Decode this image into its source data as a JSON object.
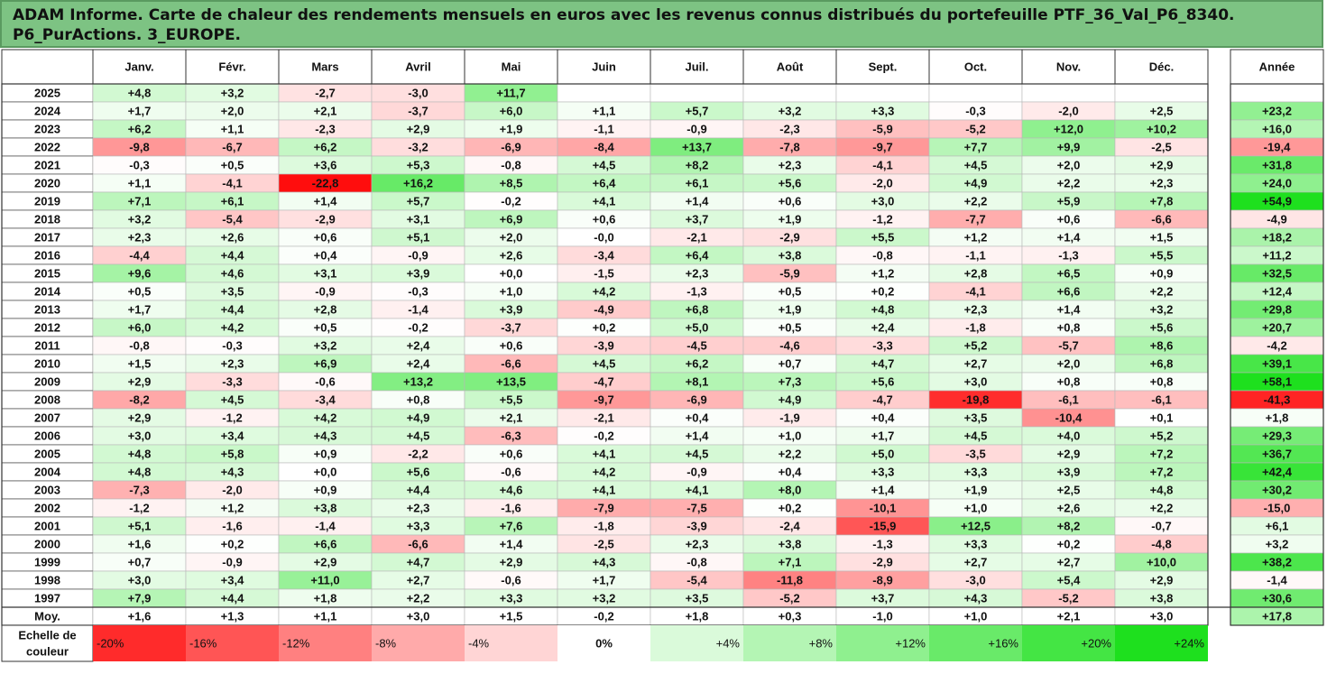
{
  "report": {
    "title_line1": "ADAM Informe. Carte de chaleur des rendements mensuels en euros avec les revenus connus distribués du portefeuille PTF_36_Val_P6_8340.",
    "title_line2": "P6_PurActions. 3_EUROPE."
  },
  "colors": {
    "title_bg": "#7dc383",
    "neg_max": "#ff0000",
    "pos_max": "#1ee01e",
    "neutral": "#ffffff",
    "grid": "#333333"
  },
  "chart_data": {
    "type": "heatmap",
    "columns": [
      "Janv.",
      "Févr.",
      "Mars",
      "Avril",
      "Mai",
      "Juin",
      "Juil.",
      "Août",
      "Sept.",
      "Oct.",
      "Nov.",
      "Déc."
    ],
    "year_column_label": "Année",
    "color_min": -24,
    "color_max": 24,
    "rows": [
      {
        "label": "2025",
        "values": [
          "+4,8",
          "+3,2",
          "-2,7",
          "-3,0",
          "+11,7",
          null,
          null,
          null,
          null,
          null,
          null,
          null
        ],
        "year": null
      },
      {
        "label": "2024",
        "values": [
          "+1,7",
          "+2,0",
          "+2,1",
          "-3,7",
          "+6,0",
          "+1,1",
          "+5,7",
          "+3,2",
          "+3,3",
          "-0,3",
          "-2,0",
          "+2,5"
        ],
        "year": "+23,2"
      },
      {
        "label": "2023",
        "values": [
          "+6,2",
          "+1,1",
          "-2,3",
          "+2,9",
          "+1,9",
          "-1,1",
          "-0,9",
          "-2,3",
          "-5,9",
          "-5,2",
          "+12,0",
          "+10,2"
        ],
        "year": "+16,0"
      },
      {
        "label": "2022",
        "values": [
          "-9,8",
          "-6,7",
          "+6,2",
          "-3,2",
          "-6,9",
          "-8,4",
          "+13,7",
          "-7,8",
          "-9,7",
          "+7,7",
          "+9,9",
          "-2,5"
        ],
        "year": "-19,4"
      },
      {
        "label": "2021",
        "values": [
          "-0,3",
          "+0,5",
          "+3,6",
          "+5,3",
          "-0,8",
          "+4,5",
          "+8,2",
          "+2,3",
          "-4,1",
          "+4,5",
          "+2,0",
          "+2,9"
        ],
        "year": "+31,8"
      },
      {
        "label": "2020",
        "values": [
          "+1,1",
          "-4,1",
          "-22,8",
          "+16,2",
          "+8,5",
          "+6,4",
          "+6,1",
          "+5,6",
          "-2,0",
          "+4,9",
          "+2,2",
          "+2,3"
        ],
        "year": "+24,0"
      },
      {
        "label": "2019",
        "values": [
          "+7,1",
          "+6,1",
          "+1,4",
          "+5,7",
          "-0,2",
          "+4,1",
          "+1,4",
          "+0,6",
          "+3,0",
          "+2,2",
          "+5,9",
          "+7,8"
        ],
        "year": "+54,9"
      },
      {
        "label": "2018",
        "values": [
          "+3,2",
          "-5,4",
          "-2,9",
          "+3,1",
          "+6,9",
          "+0,6",
          "+3,7",
          "+1,9",
          "-1,2",
          "-7,7",
          "+0,6",
          "-6,6"
        ],
        "year": "-4,9"
      },
      {
        "label": "2017",
        "values": [
          "+2,3",
          "+2,6",
          "+0,6",
          "+5,1",
          "+2,0",
          "-0,0",
          "-2,1",
          "-2,9",
          "+5,5",
          "+1,2",
          "+1,4",
          "+1,5"
        ],
        "year": "+18,2"
      },
      {
        "label": "2016",
        "values": [
          "-4,4",
          "+4,4",
          "+0,4",
          "-0,9",
          "+2,6",
          "-3,4",
          "+6,4",
          "+3,8",
          "-0,8",
          "-1,1",
          "-1,3",
          "+5,5"
        ],
        "year": "+11,2"
      },
      {
        "label": "2015",
        "values": [
          "+9,6",
          "+4,6",
          "+3,1",
          "+3,9",
          "+0,0",
          "-1,5",
          "+2,3",
          "-5,9",
          "+1,2",
          "+2,8",
          "+6,5",
          "+0,9"
        ],
        "year": "+32,5"
      },
      {
        "label": "2014",
        "values": [
          "+0,5",
          "+3,5",
          "-0,9",
          "-0,3",
          "+1,0",
          "+4,2",
          "-1,3",
          "+0,5",
          "+0,2",
          "-4,1",
          "+6,6",
          "+2,2"
        ],
        "year": "+12,4"
      },
      {
        "label": "2013",
        "values": [
          "+1,7",
          "+4,4",
          "+2,8",
          "-1,4",
          "+3,9",
          "-4,9",
          "+6,8",
          "+1,9",
          "+4,8",
          "+2,3",
          "+1,4",
          "+3,2"
        ],
        "year": "+29,8"
      },
      {
        "label": "2012",
        "values": [
          "+6,0",
          "+4,2",
          "+0,5",
          "-0,2",
          "-3,7",
          "+0,2",
          "+5,0",
          "+0,5",
          "+2,4",
          "-1,8",
          "+0,8",
          "+5,6"
        ],
        "year": "+20,7"
      },
      {
        "label": "2011",
        "values": [
          "-0,8",
          "-0,3",
          "+3,2",
          "+2,4",
          "+0,6",
          "-3,9",
          "-4,5",
          "-4,6",
          "-3,3",
          "+5,2",
          "-5,7",
          "+8,6"
        ],
        "year": "-4,2"
      },
      {
        "label": "2010",
        "values": [
          "+1,5",
          "+2,3",
          "+6,9",
          "+2,4",
          "-6,6",
          "+4,5",
          "+6,2",
          "+0,7",
          "+4,7",
          "+2,7",
          "+2,0",
          "+6,8"
        ],
        "year": "+39,1"
      },
      {
        "label": "2009",
        "values": [
          "+2,9",
          "-3,3",
          "-0,6",
          "+13,2",
          "+13,5",
          "-4,7",
          "+8,1",
          "+7,3",
          "+5,6",
          "+3,0",
          "+0,8",
          "+0,8"
        ],
        "year": "+58,1"
      },
      {
        "label": "2008",
        "values": [
          "-8,2",
          "+4,5",
          "-3,4",
          "+0,8",
          "+5,5",
          "-9,7",
          "-6,9",
          "+4,9",
          "-4,7",
          "-19,8",
          "-6,1",
          "-6,1"
        ],
        "year": "-41,3"
      },
      {
        "label": "2007",
        "values": [
          "+2,9",
          "-1,2",
          "+4,2",
          "+4,9",
          "+2,1",
          "-2,1",
          "+0,4",
          "-1,9",
          "+0,4",
          "+3,5",
          "-10,4",
          "+0,1"
        ],
        "year": "+1,8"
      },
      {
        "label": "2006",
        "values": [
          "+3,0",
          "+3,4",
          "+4,3",
          "+4,5",
          "-6,3",
          "-0,2",
          "+1,4",
          "+1,0",
          "+1,7",
          "+4,5",
          "+4,0",
          "+5,2"
        ],
        "year": "+29,3"
      },
      {
        "label": "2005",
        "values": [
          "+4,8",
          "+5,8",
          "+0,9",
          "-2,2",
          "+0,6",
          "+4,1",
          "+4,5",
          "+2,2",
          "+5,0",
          "-3,5",
          "+2,9",
          "+7,2"
        ],
        "year": "+36,7"
      },
      {
        "label": "2004",
        "values": [
          "+4,8",
          "+4,3",
          "+0,0",
          "+5,6",
          "-0,6",
          "+4,2",
          "-0,9",
          "+0,4",
          "+3,3",
          "+3,3",
          "+3,9",
          "+7,2"
        ],
        "year": "+42,4"
      },
      {
        "label": "2003",
        "values": [
          "-7,3",
          "-2,0",
          "+0,9",
          "+4,4",
          "+4,6",
          "+4,1",
          "+4,1",
          "+8,0",
          "+1,4",
          "+1,9",
          "+2,5",
          "+4,8"
        ],
        "year": "+30,2"
      },
      {
        "label": "2002",
        "values": [
          "-1,2",
          "+1,2",
          "+3,8",
          "+2,3",
          "-1,6",
          "-7,9",
          "-7,5",
          "+0,2",
          "-10,1",
          "+1,0",
          "+2,6",
          "+2,2"
        ],
        "year": "-15,0"
      },
      {
        "label": "2001",
        "values": [
          "+5,1",
          "-1,6",
          "-1,4",
          "+3,3",
          "+7,6",
          "-1,8",
          "-3,9",
          "-2,4",
          "-15,9",
          "+12,5",
          "+8,2",
          "-0,7"
        ],
        "year": "+6,1"
      },
      {
        "label": "2000",
        "values": [
          "+1,6",
          "+0,2",
          "+6,6",
          "-6,6",
          "+1,4",
          "-2,5",
          "+2,3",
          "+3,8",
          "-1,3",
          "+3,3",
          "+0,2",
          "-4,8"
        ],
        "year": "+3,2"
      },
      {
        "label": "1999",
        "values": [
          "+0,7",
          "-0,9",
          "+2,9",
          "+4,7",
          "+2,9",
          "+4,3",
          "-0,8",
          "+7,1",
          "-2,9",
          "+2,7",
          "+2,7",
          "+10,0"
        ],
        "year": "+38,2"
      },
      {
        "label": "1998",
        "values": [
          "+3,0",
          "+3,4",
          "+11,0",
          "+2,7",
          "-0,6",
          "+1,7",
          "-5,4",
          "-11,8",
          "-8,9",
          "-3,0",
          "+5,4",
          "+2,9"
        ],
        "year": "-1,4"
      },
      {
        "label": "1997",
        "values": [
          "+7,9",
          "+4,4",
          "+1,8",
          "+2,2",
          "+3,3",
          "+3,2",
          "+3,5",
          "-5,2",
          "+3,7",
          "+4,3",
          "-5,2",
          "+3,8"
        ],
        "year": "+30,6"
      }
    ],
    "average_row": {
      "label": "Moy.",
      "values": [
        "+1,6",
        "+1,3",
        "+1,1",
        "+3,0",
        "+1,5",
        "-0,2",
        "+1,8",
        "+0,3",
        "-1,0",
        "+1,0",
        "+2,1",
        "+3,0"
      ],
      "year": "+17,8"
    },
    "scale": {
      "label_line1": "Echelle de",
      "label_line2": "couleur",
      "steps": [
        {
          "label": "-20%",
          "value": -20
        },
        {
          "label": "-16%",
          "value": -16
        },
        {
          "label": "-12%",
          "value": -12
        },
        {
          "label": "-8%",
          "value": -8
        },
        {
          "label": "-4%",
          "value": -4
        },
        {
          "label": "0%",
          "value": 0
        },
        {
          "label": "+4%",
          "value": 4
        },
        {
          "label": "+8%",
          "value": 8
        },
        {
          "label": "+12%",
          "value": 12
        },
        {
          "label": "+16%",
          "value": 16
        },
        {
          "label": "+20%",
          "value": 20
        },
        {
          "label": "+24%",
          "value": 24
        }
      ]
    }
  }
}
